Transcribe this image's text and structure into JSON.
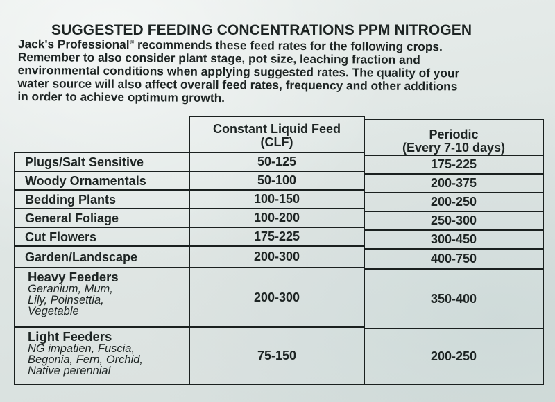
{
  "title": "SUGGESTED FEEDING CONCENTRATIONS PPM NITROGEN",
  "intro_lines": [
    "Jack's Professional",
    " recommends these feed rates for the following crops.",
    "Remember to also consider plant stage, pot size, leaching fraction and",
    "environmental conditions when applying suggested rates. The quality of your",
    "water source will also affect overall feed rates, frequency and other additions",
    "in order to achieve optimum growth."
  ],
  "registered_mark": "®",
  "table": {
    "headers": {
      "clf": [
        "Constant Liquid Feed",
        "(CLF)"
      ],
      "periodic": [
        "Periodic",
        "(Every 7-10 days)"
      ]
    },
    "rows": [
      {
        "crop": "Plugs/Salt Sensitive",
        "clf": "50-125",
        "periodic": "175-225"
      },
      {
        "crop": "Woody Ornamentals",
        "clf": "50-100",
        "periodic": "200-375"
      },
      {
        "crop": "Bedding Plants",
        "clf": "100-150",
        "periodic": "200-250"
      },
      {
        "crop": "General Foliage",
        "clf": "100-200",
        "periodic": "250-300"
      },
      {
        "crop": "Cut Flowers",
        "clf": "175-225",
        "periodic": "300-450"
      },
      {
        "crop": "Garden/Landscape",
        "clf": "200-300",
        "periodic": "400-750"
      },
      {
        "crop": "Heavy Feeders",
        "examples": [
          "Geranium, Mum,",
          "Lily, Poinsettia,",
          "Vegetable"
        ],
        "clf": "200-300",
        "periodic": "350-400"
      },
      {
        "crop": "Light Feeders",
        "examples": [
          "NG impatien, Fuscia,",
          "Begonia, Fern, Orchid,",
          "Native perennial"
        ],
        "clf": "75-150",
        "periodic": "200-250"
      }
    ]
  }
}
